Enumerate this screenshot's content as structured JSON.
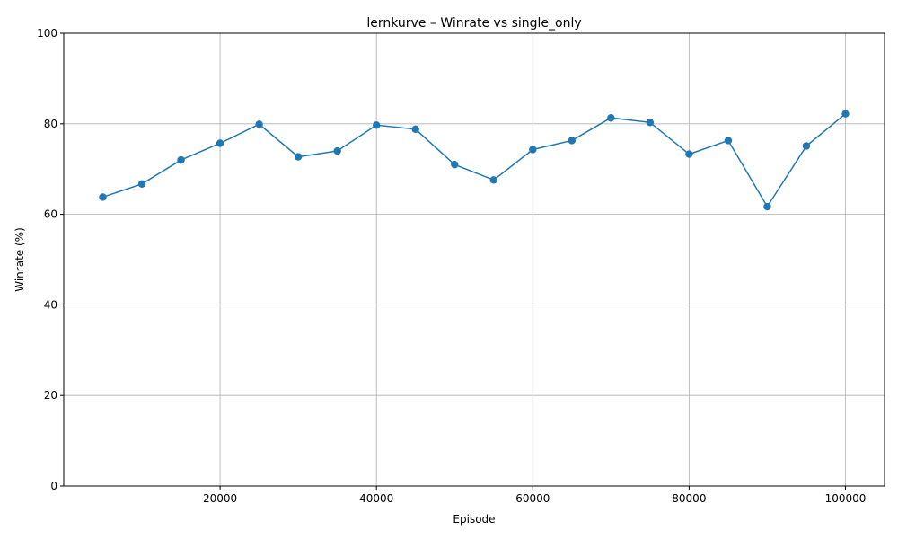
{
  "chart_data": {
    "type": "line",
    "title": "lernkurve – Winrate vs single_only",
    "xlabel": "Episode",
    "ylabel": "Winrate (%)",
    "xlim": [
      0,
      105000
    ],
    "ylim": [
      0,
      100
    ],
    "xticks": [
      "20000",
      "40000",
      "60000",
      "80000",
      "100000"
    ],
    "yticks": [
      "0",
      "20",
      "40",
      "60",
      "80",
      "100"
    ],
    "grid": true,
    "marker": "circle",
    "line_color": "#1f77b4",
    "series": [
      {
        "x": [
          5000,
          10000,
          15000,
          20000,
          25000,
          30000,
          35000,
          40000,
          45000,
          50000,
          55000,
          60000,
          65000,
          70000,
          75000,
          80000,
          85000,
          90000,
          95000,
          100000
        ],
        "y": [
          63.8,
          66.7,
          72.0,
          75.7,
          79.9,
          72.7,
          74.0,
          79.7,
          78.8,
          71.0,
          67.6,
          74.3,
          76.3,
          81.3,
          80.3,
          73.3,
          76.3,
          61.7,
          75.1,
          82.2
        ]
      }
    ]
  }
}
